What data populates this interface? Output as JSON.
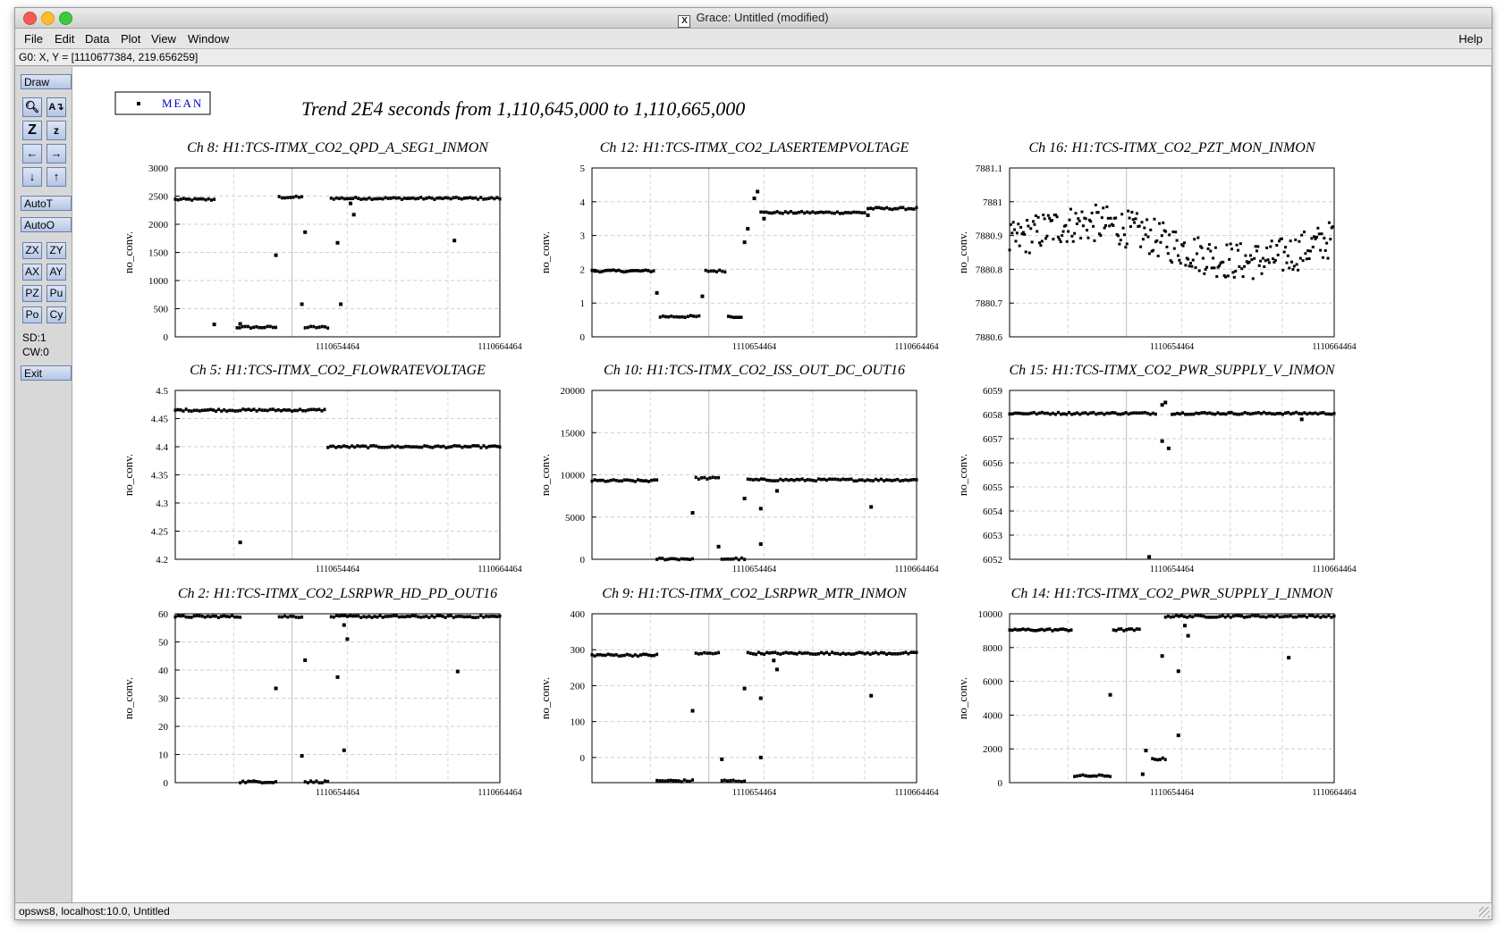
{
  "window": {
    "title": "Grace: Untitled (modified)"
  },
  "menubar": {
    "items": [
      "File",
      "Edit",
      "Data",
      "Plot",
      "View",
      "Window"
    ],
    "help": "Help"
  },
  "coord_readout": "G0: X, Y = [1110677384, 219.656259]",
  "toolbar": {
    "draw": "Draw",
    "auto_t": "AutoT",
    "auto_o": "AutoO",
    "zoom_x": "ZX",
    "zoom_y": "ZY",
    "autoscale_x": "AX",
    "autoscale_y": "AY",
    "pz": "PZ",
    "pu": "Pu",
    "po": "Po",
    "cy": "Cy",
    "sd": "SD:1",
    "cw": "CW:0",
    "exit": "Exit"
  },
  "statusbar": "opsws8, localhost:10.0, Untitled",
  "figure": {
    "title": "Trend 2E4 seconds from 1,110,645,000 to 1,110,665,000",
    "legend": "MEAN"
  },
  "chart_data": [
    {
      "type": "scatter",
      "title": "Ch 8: H1:TCS-ITMX_CO2_QPD_A_SEG1_INMON",
      "ylabel": "no_conv.",
      "ylim": [
        0,
        3000
      ],
      "yticks": [
        "3000",
        "2500",
        "2000",
        "1500",
        "1000",
        "500",
        "0"
      ],
      "xticks": [
        "1110654464",
        "1110664464"
      ],
      "segments": [
        [
          0,
          0.12,
          2440
        ],
        [
          0.19,
          0.31,
          170
        ],
        [
          0.32,
          0.39,
          2480
        ],
        [
          0.4,
          0.47,
          170
        ],
        [
          0.48,
          1.0,
          2460
        ]
      ],
      "outliers": [
        [
          0.31,
          1450
        ],
        [
          0.4,
          1860
        ],
        [
          0.5,
          1670
        ],
        [
          0.54,
          2370
        ],
        [
          0.55,
          2170
        ],
        [
          0.39,
          580
        ],
        [
          0.51,
          580
        ],
        [
          0.86,
          1710
        ],
        [
          0.12,
          220
        ],
        [
          0.2,
          230
        ]
      ]
    },
    {
      "type": "scatter",
      "title": "Ch 12: H1:TCS-ITMX_CO2_LASERTEMPVOLTAGE",
      "ylabel": "no_conv.",
      "ylim": [
        0,
        5
      ],
      "yticks": [
        "5",
        "4",
        "3",
        "2",
        "1",
        "0"
      ],
      "xticks": [
        "1110654464",
        "1110664464"
      ],
      "segments": [
        [
          0,
          0.19,
          1.95
        ],
        [
          0.21,
          0.33,
          0.6
        ],
        [
          0.35,
          0.41,
          1.95
        ],
        [
          0.42,
          0.46,
          0.6
        ],
        [
          0.52,
          0.84,
          3.68
        ],
        [
          0.85,
          1.0,
          3.8
        ]
      ],
      "outliers": [
        [
          0.2,
          1.3
        ],
        [
          0.34,
          1.2
        ],
        [
          0.47,
          2.8
        ],
        [
          0.48,
          3.2
        ],
        [
          0.5,
          4.1
        ],
        [
          0.51,
          4.3
        ],
        [
          0.53,
          3.5
        ],
        [
          0.85,
          3.6
        ]
      ]
    },
    {
      "type": "scatter",
      "title": "Ch 16: H1:TCS-ITMX_CO2_PZT_MON_INMON",
      "ylabel": "no_conv.",
      "ylim": [
        7880.6,
        7881.1
      ],
      "yticks": [
        "7881.1",
        "7881",
        "7880.9",
        "7880.8",
        "7880.7",
        "7880.6"
      ],
      "xticks": [
        "1110654464",
        "1110664464"
      ],
      "noisy": true,
      "noise_center": 7880.88,
      "noise_amp": 0.08
    },
    {
      "type": "scatter",
      "title": "Ch 5: H1:TCS-ITMX_CO2_FLOWRATEVOLTAGE",
      "ylabel": "no_conv.",
      "ylim": [
        4.2,
        4.5
      ],
      "yticks": [
        "4.5",
        "4.45",
        "4.4",
        "4.35",
        "4.3",
        "4.25",
        "4.2"
      ],
      "xticks": [
        "1110654464",
        "1110664464"
      ],
      "segments": [
        [
          0,
          0.46,
          4.465
        ],
        [
          0.47,
          1.0,
          4.4
        ]
      ],
      "outliers": [
        [
          0.2,
          4.23
        ]
      ]
    },
    {
      "type": "scatter",
      "title": "Ch 10: H1:TCS-ITMX_CO2_ISS_OUT_DC_OUT16",
      "ylabel": "no_conv.",
      "ylim": [
        0,
        20000
      ],
      "yticks": [
        "20000",
        "15000",
        "10000",
        "5000",
        "0"
      ],
      "xticks": [
        "1110654464",
        "1110664464"
      ],
      "segments": [
        [
          0,
          0.2,
          9300
        ],
        [
          0.2,
          0.31,
          50
        ],
        [
          0.32,
          0.39,
          9600
        ],
        [
          0.4,
          0.47,
          50
        ],
        [
          0.48,
          1.0,
          9400
        ]
      ],
      "outliers": [
        [
          0.31,
          5500
        ],
        [
          0.39,
          1500
        ],
        [
          0.47,
          7200
        ],
        [
          0.52,
          6000
        ],
        [
          0.52,
          1800
        ],
        [
          0.57,
          8100
        ],
        [
          0.86,
          6200
        ]
      ]
    },
    {
      "type": "scatter",
      "title": "Ch 15: H1:TCS-ITMX_CO2_PWR_SUPPLY_V_INMON",
      "ylabel": "no_conv.",
      "ylim": [
        6052,
        6059
      ],
      "yticks": [
        "6059",
        "6058",
        "6057",
        "6056",
        "6055",
        "6054",
        "6053",
        "6052"
      ],
      "xticks": [
        "1110654464",
        "1110664464"
      ],
      "segments": [
        [
          0,
          0.45,
          6058.05
        ],
        [
          0.5,
          1.0,
          6058.05
        ]
      ],
      "outliers": [
        [
          0.47,
          6058.4
        ],
        [
          0.48,
          6058.5
        ],
        [
          0.47,
          6056.9
        ],
        [
          0.49,
          6056.6
        ],
        [
          0.43,
          6052.1
        ],
        [
          0.9,
          6057.8
        ]
      ]
    },
    {
      "type": "scatter",
      "title": "Ch 2: H1:TCS-ITMX_CO2_LSRPWR_HD_PD_OUT16",
      "ylabel": "no_conv.",
      "ylim": [
        0,
        60
      ],
      "yticks": [
        "60",
        "50",
        "40",
        "30",
        "20",
        "10",
        "0"
      ],
      "xticks": [
        "1110654464",
        "1110664464"
      ],
      "segments": [
        [
          0,
          0.2,
          59
        ],
        [
          0.2,
          0.31,
          0.3
        ],
        [
          0.32,
          0.39,
          59
        ],
        [
          0.4,
          0.47,
          0.3
        ],
        [
          0.48,
          1.0,
          59
        ]
      ],
      "outliers": [
        [
          0.31,
          33.5
        ],
        [
          0.4,
          43.5
        ],
        [
          0.53,
          51
        ],
        [
          0.52,
          56
        ],
        [
          0.52,
          11.5
        ],
        [
          0.87,
          39.5
        ],
        [
          0.39,
          9.5
        ],
        [
          0.5,
          37.5
        ]
      ]
    },
    {
      "type": "scatter",
      "title": "Ch 9: H1:TCS-ITMX_CO2_LSRPWR_MTR_INMON",
      "ylabel": "no_conv.",
      "ylim": [
        -70,
        400
      ],
      "yticks": [
        "400",
        "300",
        "200",
        "100",
        "0"
      ],
      "ytick_values": [
        400,
        300,
        200,
        100,
        0
      ],
      "xticks": [
        "1110654464",
        "1110664464"
      ],
      "segments": [
        [
          0,
          0.2,
          285
        ],
        [
          0.2,
          0.31,
          -65
        ],
        [
          0.32,
          0.39,
          290
        ],
        [
          0.4,
          0.47,
          -65
        ],
        [
          0.48,
          1.0,
          290
        ]
      ],
      "outliers": [
        [
          0.31,
          130
        ],
        [
          0.4,
          -5
        ],
        [
          0.47,
          192
        ],
        [
          0.52,
          165
        ],
        [
          0.52,
          0
        ],
        [
          0.57,
          245
        ],
        [
          0.56,
          270
        ],
        [
          0.86,
          172
        ]
      ]
    },
    {
      "type": "scatter",
      "title": "Ch 14: H1:TCS-ITMX_CO2_PWR_SUPPLY_I_INMON",
      "ylabel": "no_conv.",
      "ylim": [
        0,
        10000
      ],
      "yticks": [
        "10000",
        "8000",
        "6000",
        "4000",
        "2000",
        "0"
      ],
      "xticks": [
        "1110654464",
        "1110664464"
      ],
      "segments": [
        [
          0,
          0.19,
          9050
        ],
        [
          0.2,
          0.31,
          400
        ],
        [
          0.32,
          0.4,
          9050
        ],
        [
          0.44,
          0.48,
          1400
        ],
        [
          0.48,
          1.0,
          9850
        ]
      ],
      "outliers": [
        [
          0.31,
          5200
        ],
        [
          0.47,
          7500
        ],
        [
          0.52,
          6600
        ],
        [
          0.54,
          9300
        ],
        [
          0.55,
          8700
        ],
        [
          0.52,
          2800
        ],
        [
          0.41,
          500
        ],
        [
          0.42,
          1900
        ],
        [
          0.86,
          7400
        ]
      ]
    }
  ]
}
